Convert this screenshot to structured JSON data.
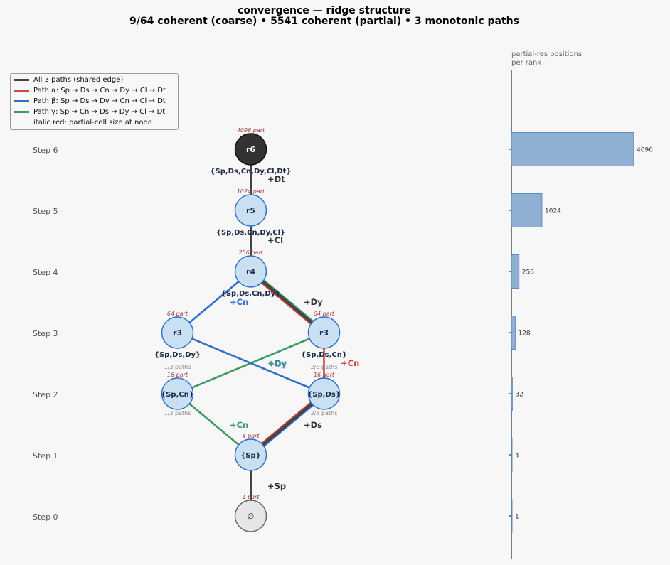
{
  "title": {
    "line1": "convergence — ridge structure",
    "line2": "9/64 coherent (coarse)  •  5541 coherent (partial)  •  3 monotonic paths"
  },
  "legend": [
    {
      "label": "All 3 paths (shared edge)",
      "color": "#444444"
    },
    {
      "label": "Path α: Sp → Ds → Cn → Dy → Cl → Dt",
      "color": "#d0433f"
    },
    {
      "label": "Path β: Sp → Ds → Dy → Cn → Cl → Dt",
      "color": "#2f6fc9"
    },
    {
      "label": "Path γ: Sp → Cn → Ds → Dy → Cl → Dt",
      "color": "#3a9b62"
    },
    {
      "label": "italic red: partial-cell size at node",
      "color": ""
    }
  ],
  "steps": [
    "Step 0",
    "Step 1",
    "Step 2",
    "Step 3",
    "Step 4",
    "Step 5",
    "Step 6"
  ],
  "nodes": [
    {
      "id": "n0",
      "label": "∅",
      "set": "",
      "part": "1 part",
      "paths_above": "",
      "paths_below": "",
      "step": 0,
      "style": "empty"
    },
    {
      "id": "n1",
      "label": "{Sp}",
      "set": "",
      "part": "4 part",
      "paths_above": "",
      "paths_below": "",
      "step": 1,
      "style": "normal"
    },
    {
      "id": "n2a",
      "label": "{Sp,Cn}",
      "set": "",
      "part": "16 part",
      "paths_above": "1/3 paths",
      "paths_below": "1/3 paths",
      "step": 2,
      "style": "normal"
    },
    {
      "id": "n2b",
      "label": "{Sp,Ds}",
      "set": "",
      "part": "16 part",
      "paths_above": "2/3 paths",
      "paths_below": "2/3 paths",
      "step": 2,
      "style": "normal"
    },
    {
      "id": "n3a",
      "label": "r3",
      "set": "{Sp,Ds,Dy}",
      "part": "64 part",
      "paths_above": "",
      "paths_below": "",
      "step": 3,
      "style": "normal"
    },
    {
      "id": "n3b",
      "label": "r3",
      "set": "{Sp,Ds,Cn}",
      "part": "64 part",
      "paths_above": "",
      "paths_below": "",
      "step": 3,
      "style": "normal"
    },
    {
      "id": "n4",
      "label": "r4",
      "set": "{Sp,Ds,Cn,Dy}",
      "part": "256 part",
      "paths_above": "",
      "paths_below": "",
      "step": 4,
      "style": "normal"
    },
    {
      "id": "n5",
      "label": "r5",
      "set": "{Sp,Ds,Cn,Dy,Cl}",
      "part": "1024 part",
      "paths_above": "",
      "paths_below": "",
      "step": 5,
      "style": "normal"
    },
    {
      "id": "n6",
      "label": "r6",
      "set": "{Sp,Ds,Cn,Dy,Cl,Dt}",
      "part": "4096 part",
      "paths_above": "",
      "paths_below": "",
      "step": 6,
      "style": "dark"
    }
  ],
  "edge_labels": [
    {
      "text": "+Sp",
      "color": "#333333"
    },
    {
      "text": "+Cn",
      "color": "#3a9b62"
    },
    {
      "text": "+Ds",
      "color": "#333333"
    },
    {
      "text": "+Dy",
      "color": "#3a9b62"
    },
    {
      "text": "+Dy",
      "color": "#2f6fc9"
    },
    {
      "text": "+Cn",
      "color": "#d0433f"
    },
    {
      "text": "+Cn",
      "color": "#2f6fc9"
    },
    {
      "text": "+Dy",
      "color": "#333333"
    },
    {
      "text": "+Cl",
      "color": "#333333"
    },
    {
      "text": "+Dt",
      "color": "#333333"
    }
  ],
  "bar_panel": {
    "title_line1": "partial-res positions",
    "title_line2": "per rank",
    "bars": [
      {
        "step": 0,
        "value": 1,
        "label": "1"
      },
      {
        "step": 1,
        "value": 4,
        "label": "4"
      },
      {
        "step": 2,
        "value": 32,
        "label": "32"
      },
      {
        "step": 3,
        "value": 128,
        "label": "128"
      },
      {
        "step": 4,
        "value": 256,
        "label": "256"
      },
      {
        "step": 5,
        "value": 1024,
        "label": "1024"
      },
      {
        "step": 6,
        "value": 4096,
        "label": "4096"
      }
    ],
    "max": 4096,
    "bar_color": "#8fb0d3"
  },
  "colors": {
    "shared": "#444444",
    "alpha": "#d0433f",
    "beta": "#2f6fc9",
    "gamma": "#3a9b62",
    "node_fill": "#c9dff2",
    "node_stroke": "#2f6fc9",
    "part_text": "#a33a3a",
    "set_text": "#1e2a4a"
  }
}
